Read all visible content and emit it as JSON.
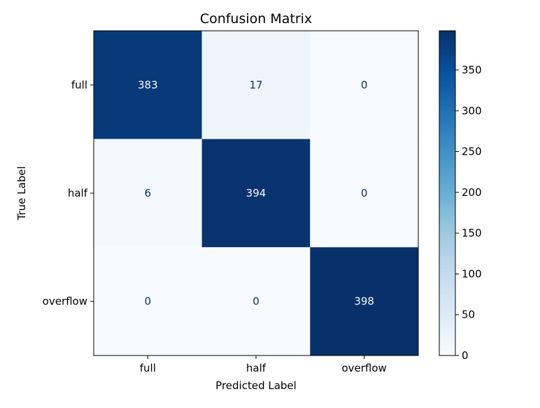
{
  "chart_data": {
    "type": "heatmap",
    "title": "Confusion Matrix",
    "xlabel": "Predicted Label",
    "ylabel": "True Label",
    "x_categories": [
      "full",
      "half",
      "overflow"
    ],
    "y_categories": [
      "full",
      "half",
      "overflow"
    ],
    "values": [
      [
        383,
        17,
        0
      ],
      [
        6,
        394,
        0
      ],
      [
        0,
        0,
        398
      ]
    ],
    "colormap": "Blues",
    "colorbar": {
      "range": [
        0,
        398
      ],
      "ticks": [
        0,
        50,
        100,
        150,
        200,
        250,
        300,
        350
      ],
      "tick_labels": [
        "0",
        "50",
        "100",
        "150",
        "200",
        "250",
        "300",
        "350"
      ]
    },
    "colors": {
      "low": "#f7fbff",
      "high": "#08306b",
      "text_dark": "#08306b",
      "text_light": "#f7fbff"
    }
  }
}
